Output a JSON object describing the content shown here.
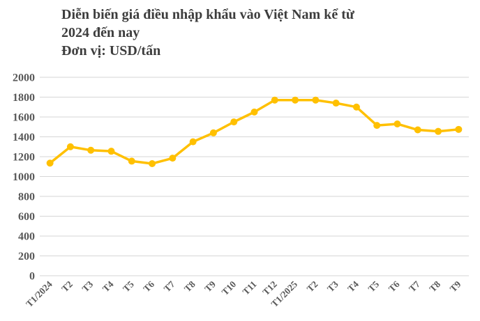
{
  "header": {
    "title_line1": "Diễn biến giá điều nhập khẩu vào Việt Nam kể từ",
    "title_line2": "2024 đến nay",
    "title_line3": "Đơn vị: USD/tấn"
  },
  "chart_data": {
    "type": "line",
    "title": "Diễn biến giá điều nhập khẩu vào Việt Nam kể từ 2024 đến nay",
    "unit_label": "Đơn vị: USD/tấn",
    "categories": [
      "T1/2024",
      "T2",
      "T3",
      "T4",
      "T5",
      "T6",
      "T7",
      "T8",
      "T9",
      "T10",
      "T11",
      "T12",
      "T1/2025",
      "T2",
      "T3",
      "T4",
      "T5",
      "T6",
      "T7",
      "T8",
      "T9"
    ],
    "values": [
      1135,
      1300,
      1265,
      1255,
      1155,
      1130,
      1185,
      1350,
      1440,
      1550,
      1650,
      1770,
      1770,
      1770,
      1740,
      1700,
      1515,
      1530,
      1470,
      1455,
      1475
    ],
    "ylim": [
      0,
      2000
    ],
    "ytick_step": 200,
    "grid": true,
    "legend_position": "none",
    "colors": {
      "line": "#FFC000",
      "marker": "#FFC000",
      "grid": "#D6D6D6",
      "axis_text": "#595959",
      "title_text": "#3D3D3D",
      "background": "#FFFFFF"
    }
  }
}
